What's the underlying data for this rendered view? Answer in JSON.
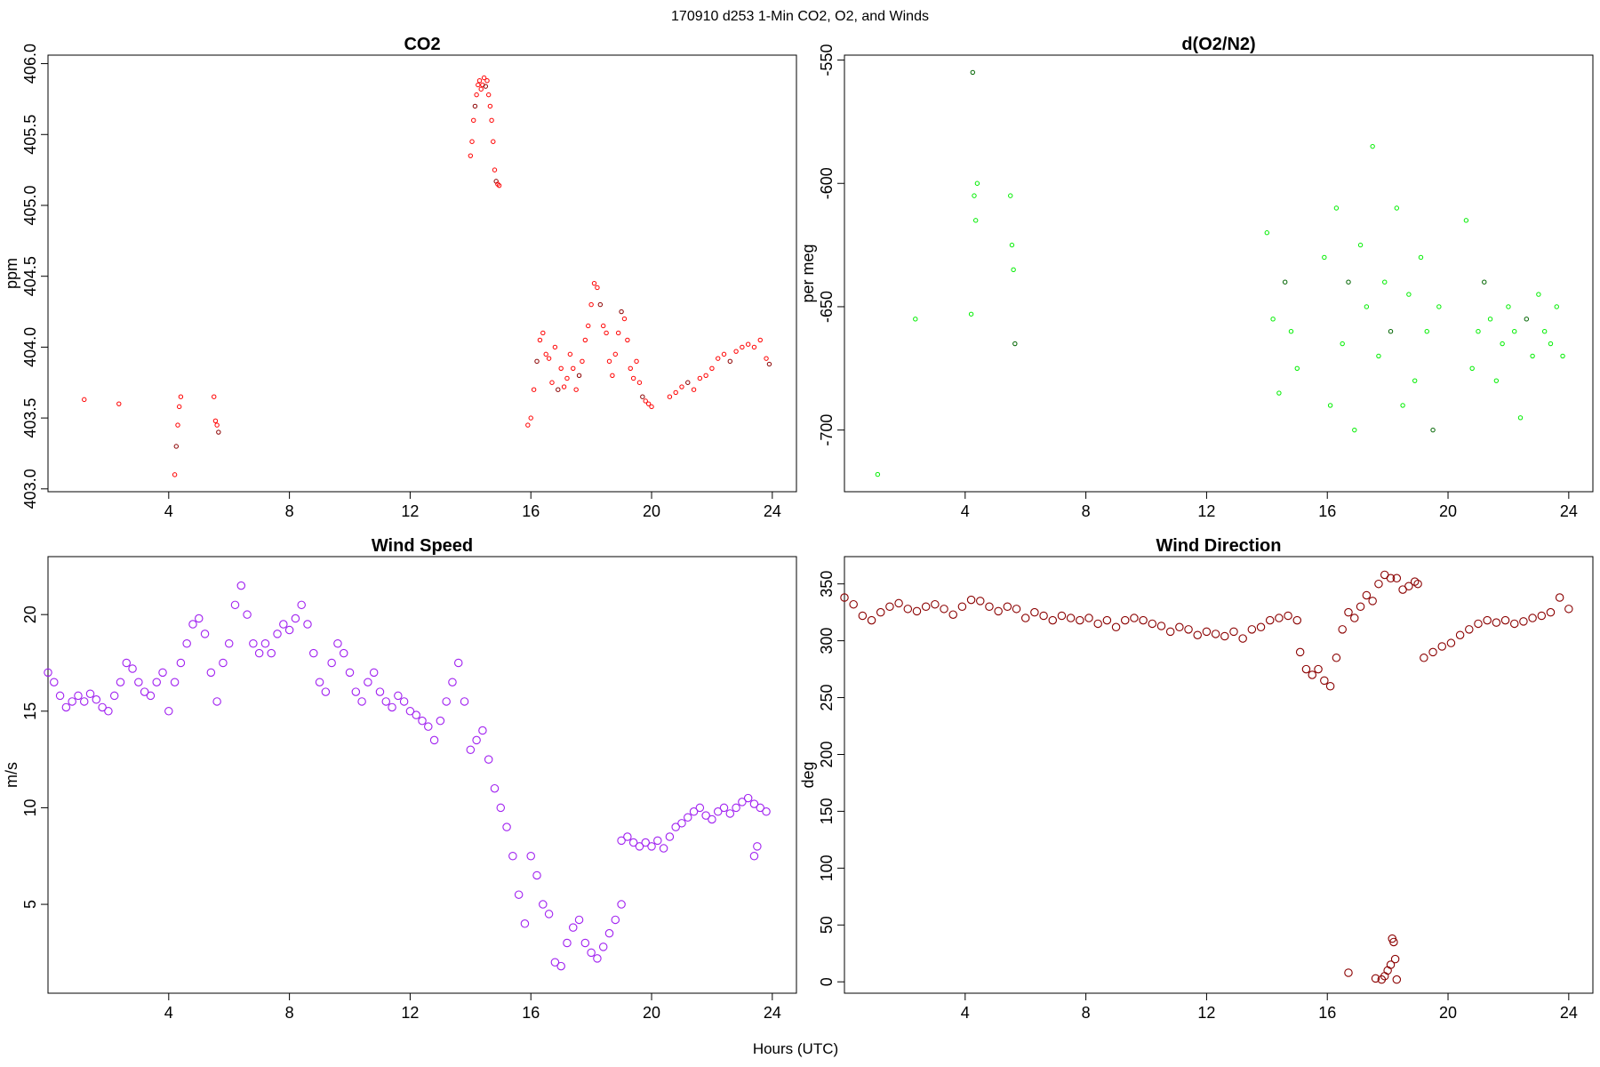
{
  "page_title": "170910   d253   1-Min CO2, O2, and Winds",
  "xlabel": "Hours (UTC)",
  "chart_data": [
    {
      "type": "scatter",
      "title": "CO2",
      "ylabel": "ppm",
      "xlim": [
        0,
        24.8
      ],
      "ylim": [
        402.98,
        406.06
      ],
      "xticks": [
        4,
        8,
        12,
        16,
        20,
        24
      ],
      "yticks": [
        403.0,
        403.5,
        404.0,
        404.5,
        405.0,
        405.5,
        406.0
      ],
      "ytick_labels": [
        "403.0",
        "403.5",
        "404.0",
        "404.5",
        "405.0",
        "405.5",
        "406.0"
      ],
      "color": "#ff0000",
      "dark_color": "#8b0000",
      "marker_size": "small",
      "series": [
        {
          "x": [
            1.2,
            2.35,
            4.2,
            4.25,
            4.3,
            4.35,
            4.4,
            5.5,
            5.55,
            5.6,
            5.65
          ],
          "y": [
            403.63,
            403.6,
            403.1,
            403.3,
            403.45,
            403.58,
            403.65,
            403.65,
            403.48,
            403.45,
            403.4
          ]
        },
        {
          "x": [
            14.0,
            14.05,
            14.1,
            14.15,
            14.2,
            14.25,
            14.3,
            14.35,
            14.4,
            14.45,
            14.5,
            14.55,
            14.6,
            14.65,
            14.7,
            14.75,
            14.8,
            14.85,
            14.9,
            14.95
          ],
          "y": [
            405.35,
            405.45,
            405.6,
            405.7,
            405.78,
            405.85,
            405.88,
            405.82,
            405.85,
            405.9,
            405.84,
            405.88,
            405.78,
            405.7,
            405.6,
            405.45,
            405.25,
            405.17,
            405.15,
            405.14
          ]
        },
        {
          "x": [
            15.9,
            16.0,
            16.1,
            16.2,
            16.3,
            16.4,
            16.5,
            16.6,
            16.7,
            16.8,
            16.9,
            17.0,
            17.1,
            17.2,
            17.3,
            17.4,
            17.5,
            17.6,
            17.7,
            17.8,
            17.9,
            18.0,
            18.1,
            18.2,
            18.3,
            18.4,
            18.5,
            18.6,
            18.7,
            18.8,
            18.9,
            19.0,
            19.1,
            19.2,
            19.3,
            19.4,
            19.5,
            19.6,
            19.7,
            19.8,
            19.9,
            20.0
          ],
          "y": [
            403.45,
            403.5,
            403.7,
            403.9,
            404.05,
            404.1,
            403.95,
            403.92,
            403.75,
            404.0,
            403.7,
            403.85,
            403.72,
            403.78,
            403.95,
            403.85,
            403.7,
            403.8,
            403.9,
            404.05,
            404.15,
            404.3,
            404.45,
            404.42,
            404.3,
            404.15,
            404.1,
            403.9,
            403.8,
            403.95,
            404.1,
            404.25,
            404.2,
            404.05,
            403.85,
            403.78,
            403.9,
            403.75,
            403.65,
            403.62,
            403.6,
            403.58
          ]
        },
        {
          "x": [
            20.6,
            20.8,
            21.0,
            21.2,
            21.4,
            21.6,
            21.8,
            22.0,
            22.2,
            22.4,
            22.6,
            22.8,
            23.0,
            23.2,
            23.4,
            23.6,
            23.8,
            23.9
          ],
          "y": [
            403.65,
            403.68,
            403.72,
            403.75,
            403.7,
            403.78,
            403.8,
            403.85,
            403.92,
            403.95,
            403.9,
            403.97,
            404.0,
            404.02,
            404.0,
            404.05,
            403.92,
            403.88
          ]
        }
      ]
    },
    {
      "type": "scatter",
      "title": "d(O2/N2)",
      "ylabel": "per meg",
      "xlim": [
        0,
        24.8
      ],
      "ylim": [
        -725,
        -548
      ],
      "xticks": [
        4,
        8,
        12,
        16,
        20,
        24
      ],
      "yticks": [
        -700,
        -650,
        -600,
        -550
      ],
      "ytick_labels": [
        "-700",
        "-650",
        "-600",
        "-550"
      ],
      "color": "#00ee00",
      "dark_color": "#006400",
      "marker_size": "small",
      "series": [
        {
          "x": [
            1.1,
            2.35,
            4.2,
            4.25,
            4.3,
            4.35,
            4.4,
            5.5,
            5.55,
            5.6,
            5.65
          ],
          "y": [
            -718,
            -655,
            -653,
            -555,
            -605,
            -615,
            -600,
            -605,
            -625,
            -635,
            -665
          ]
        },
        {
          "x": [
            14.0,
            14.2,
            14.4,
            14.6,
            14.8,
            15.0,
            15.9,
            16.1,
            16.3,
            16.5,
            16.7,
            16.9,
            17.1,
            17.3,
            17.5,
            17.7,
            17.9,
            18.1,
            18.3,
            18.5,
            18.7,
            18.9,
            19.1,
            19.3,
            19.5,
            19.7
          ],
          "y": [
            -620,
            -655,
            -685,
            -640,
            -660,
            -675,
            -630,
            -690,
            -610,
            -665,
            -640,
            -700,
            -625,
            -650,
            -585,
            -670,
            -640,
            -660,
            -610,
            -690,
            -645,
            -680,
            -630,
            -660,
            -700,
            -650
          ]
        },
        {
          "x": [
            20.6,
            20.8,
            21.0,
            21.2,
            21.4,
            21.6,
            21.8,
            22.0,
            22.2,
            22.4,
            22.6,
            22.8,
            23.0,
            23.2,
            23.4,
            23.6,
            23.8
          ],
          "y": [
            -615,
            -675,
            -660,
            -640,
            -655,
            -680,
            -665,
            -650,
            -660,
            -695,
            -655,
            -670,
            -645,
            -660,
            -665,
            -650,
            -670
          ]
        }
      ]
    },
    {
      "type": "scatter",
      "title": "Wind Speed",
      "ylabel": "m/s",
      "xlim": [
        0,
        24.8
      ],
      "ylim": [
        0.4,
        23.0
      ],
      "xticks": [
        4,
        8,
        12,
        16,
        20,
        24
      ],
      "yticks": [
        5,
        10,
        15,
        20
      ],
      "ytick_labels": [
        "5",
        "10",
        "15",
        "20"
      ],
      "color": "#a020f0",
      "dark_color": "#a020f0",
      "marker_size": "large",
      "series": [
        {
          "x": [
            0.0,
            0.2,
            0.4,
            0.6,
            0.8,
            1.0,
            1.2,
            1.4,
            1.6,
            1.8,
            2.0,
            2.2,
            2.4,
            2.6,
            2.8,
            3.0,
            3.2,
            3.4,
            3.6,
            3.8,
            4.0,
            4.2,
            4.4,
            4.6,
            4.8,
            5.0,
            5.2,
            5.4,
            5.6,
            5.8,
            6.0,
            6.2,
            6.4,
            6.6,
            6.8,
            7.0,
            7.2,
            7.4,
            7.6,
            7.8,
            8.0,
            8.2,
            8.4,
            8.6,
            8.8,
            9.0,
            9.2,
            9.4,
            9.6,
            9.8,
            10.0,
            10.2,
            10.4,
            10.6,
            10.8,
            11.0,
            11.2,
            11.4,
            11.6,
            11.8,
            12.0,
            12.2,
            12.4,
            12.6,
            12.8,
            13.0,
            13.2,
            13.4,
            13.6,
            13.8,
            14.0,
            14.2,
            14.4,
            14.6,
            14.8,
            15.0,
            15.2,
            15.4,
            15.6,
            15.8,
            16.0,
            16.2,
            16.4,
            16.6,
            16.8,
            17.0,
            17.2,
            17.4,
            17.6,
            17.8,
            18.0,
            18.2,
            18.4,
            18.6,
            18.8,
            19.0
          ],
          "y": [
            17.0,
            16.5,
            15.8,
            15.2,
            15.5,
            15.8,
            15.5,
            15.9,
            15.6,
            15.2,
            15.0,
            15.8,
            16.5,
            17.5,
            17.2,
            16.5,
            16.0,
            15.8,
            16.5,
            17.0,
            15.0,
            16.5,
            17.5,
            18.5,
            19.5,
            19.8,
            19.0,
            17.0,
            15.5,
            17.5,
            18.5,
            20.5,
            21.5,
            20.0,
            18.5,
            18.0,
            18.5,
            18.0,
            19.0,
            19.5,
            19.2,
            19.8,
            20.5,
            19.5,
            18.0,
            16.5,
            16.0,
            17.5,
            18.5,
            18.0,
            17.0,
            16.0,
            15.5,
            16.5,
            17.0,
            16.0,
            15.5,
            15.2,
            15.8,
            15.5,
            15.0,
            14.8,
            14.5,
            14.2,
            13.5,
            14.5,
            15.5,
            16.5,
            17.5,
            15.5,
            13.0,
            13.5,
            14.0,
            12.5,
            11.0,
            10.0,
            9.0,
            7.5,
            5.5,
            4.0,
            7.5,
            6.5,
            5.0,
            4.5,
            2.0,
            1.8,
            3.0,
            3.8,
            4.2,
            3.0,
            2.5,
            2.2,
            2.8,
            3.5,
            4.2,
            5.0
          ]
        },
        {
          "x": [
            19.0,
            19.2,
            19.4,
            19.6,
            19.8,
            20.0,
            20.2,
            20.4,
            20.6,
            20.8,
            21.0,
            21.2,
            21.4,
            21.6,
            21.8,
            22.0,
            22.2,
            22.4,
            22.6,
            22.8,
            23.0,
            23.2,
            23.4,
            23.6,
            23.8,
            23.4,
            23.5
          ],
          "y": [
            8.3,
            8.5,
            8.2,
            8.0,
            8.2,
            8.0,
            8.3,
            7.9,
            8.5,
            9.0,
            9.2,
            9.5,
            9.8,
            10.0,
            9.6,
            9.4,
            9.8,
            10.0,
            9.7,
            10.0,
            10.3,
            10.5,
            10.2,
            10.0,
            9.8,
            7.5,
            8.0
          ]
        }
      ]
    },
    {
      "type": "scatter",
      "title": "Wind Direction",
      "ylabel": "deg",
      "xlim": [
        0,
        24.8
      ],
      "ylim": [
        -10,
        374
      ],
      "xticks": [
        4,
        8,
        12,
        16,
        20,
        24
      ],
      "yticks": [
        0,
        50,
        100,
        150,
        200,
        250,
        300,
        350
      ],
      "ytick_labels": [
        "0",
        "50",
        "100",
        "150",
        "200",
        "250",
        "300",
        "350"
      ],
      "color": "#8b0000",
      "dark_color": "#8b0000",
      "marker_size": "large",
      "series": [
        {
          "x": [
            0.0,
            0.3,
            0.6,
            0.9,
            1.2,
            1.5,
            1.8,
            2.1,
            2.4,
            2.7,
            3.0,
            3.3,
            3.6,
            3.9,
            4.2,
            4.5,
            4.8,
            5.1,
            5.4,
            5.7,
            6.0,
            6.3,
            6.6,
            6.9,
            7.2,
            7.5,
            7.8,
            8.1,
            8.4,
            8.7,
            9.0,
            9.3,
            9.6,
            9.9,
            10.2,
            10.5,
            10.8,
            11.1,
            11.4,
            11.7,
            12.0,
            12.3,
            12.6,
            12.9,
            13.2,
            13.5,
            13.8,
            14.1,
            14.4,
            14.7,
            15.0
          ],
          "y": [
            338,
            332,
            322,
            318,
            325,
            330,
            333,
            328,
            326,
            330,
            332,
            328,
            323,
            330,
            336,
            335,
            330,
            326,
            330,
            328,
            320,
            325,
            322,
            318,
            322,
            320,
            318,
            320,
            315,
            318,
            312,
            318,
            320,
            318,
            315,
            313,
            308,
            312,
            310,
            305,
            308,
            306,
            304,
            308,
            302,
            310,
            312,
            318,
            320,
            322,
            318
          ]
        },
        {
          "x": [
            15.1,
            15.3,
            15.5,
            15.7,
            15.9,
            16.1,
            16.3,
            16.5,
            16.7,
            16.9,
            17.1,
            17.3,
            17.5,
            17.7,
            17.9,
            18.1,
            18.3,
            18.5,
            18.7,
            18.9,
            19.0
          ],
          "y": [
            290,
            275,
            270,
            275,
            265,
            260,
            285,
            310,
            325,
            320,
            330,
            340,
            335,
            350,
            358,
            355,
            355,
            345,
            348,
            352,
            350
          ]
        },
        {
          "x": [
            16.7,
            17.6,
            17.8,
            17.9,
            18.0,
            18.1,
            18.15,
            18.2,
            18.25,
            18.3
          ],
          "y": [
            8,
            3,
            2,
            5,
            10,
            15,
            38,
            35,
            20,
            2
          ]
        },
        {
          "x": [
            19.2,
            19.5,
            19.8,
            20.1,
            20.4,
            20.7,
            21.0,
            21.3,
            21.6,
            21.9,
            22.2,
            22.5,
            22.8,
            23.1,
            23.4,
            23.7,
            24.0
          ],
          "y": [
            285,
            290,
            295,
            298,
            305,
            310,
            315,
            318,
            316,
            318,
            315,
            317,
            320,
            322,
            325,
            338,
            328
          ]
        }
      ]
    }
  ]
}
